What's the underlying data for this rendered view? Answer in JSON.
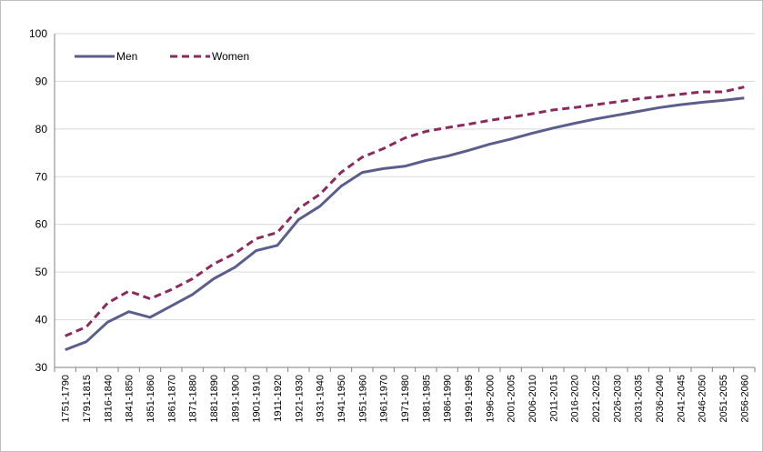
{
  "chart_data": {
    "type": "line",
    "categories": [
      "1751-1790",
      "1791-1815",
      "1816-1840",
      "1841-1850",
      "1851-1860",
      "1861-1870",
      "1871-1880",
      "1881-1890",
      "1891-1900",
      "1901-1910",
      "1911-1920",
      "1921-1930",
      "1931-1940",
      "1941-1950",
      "1951-1960",
      "1961-1970",
      "1971-1980",
      "1981-1985",
      "1986-1990",
      "1991-1995",
      "1996-2000",
      "2001-2005",
      "2006-2010",
      "2011-2015",
      "2016-2020",
      "2021-2025",
      "2026-2030",
      "2031-2035",
      "2036-2040",
      "2041-2045",
      "2046-2050",
      "2051-2055",
      "2056-2060"
    ],
    "series": [
      {
        "name": "Men",
        "color": "#5b5d8c",
        "dash": "solid",
        "values": [
          33.7,
          35.4,
          39.5,
          41.7,
          40.5,
          42.9,
          45.3,
          48.6,
          51.0,
          54.5,
          55.6,
          61.0,
          63.8,
          68.0,
          70.9,
          71.7,
          72.2,
          73.4,
          74.3,
          75.5,
          76.8,
          77.9,
          79.1,
          80.2,
          81.2,
          82.1,
          82.9,
          83.7,
          84.5,
          85.1,
          85.6,
          86.0,
          86.5
        ]
      },
      {
        "name": "Women",
        "color": "#8b2a5e",
        "dash": "dashed",
        "values": [
          36.6,
          38.5,
          43.5,
          46.0,
          44.4,
          46.3,
          48.6,
          51.7,
          53.9,
          57.0,
          58.3,
          63.3,
          66.3,
          70.9,
          74.1,
          75.9,
          78.1,
          79.5,
          80.3,
          81.0,
          81.8,
          82.5,
          83.2,
          84.0,
          84.5,
          85.1,
          85.7,
          86.3,
          86.8,
          87.3,
          87.8,
          87.8,
          88.8
        ]
      }
    ],
    "title": "",
    "xlabel": "",
    "ylabel": "",
    "ylim": [
      30,
      100
    ],
    "yticks": [
      30,
      40,
      50,
      60,
      70,
      80,
      90,
      100
    ],
    "grid": "horizontal",
    "legend_position": "top-left"
  }
}
